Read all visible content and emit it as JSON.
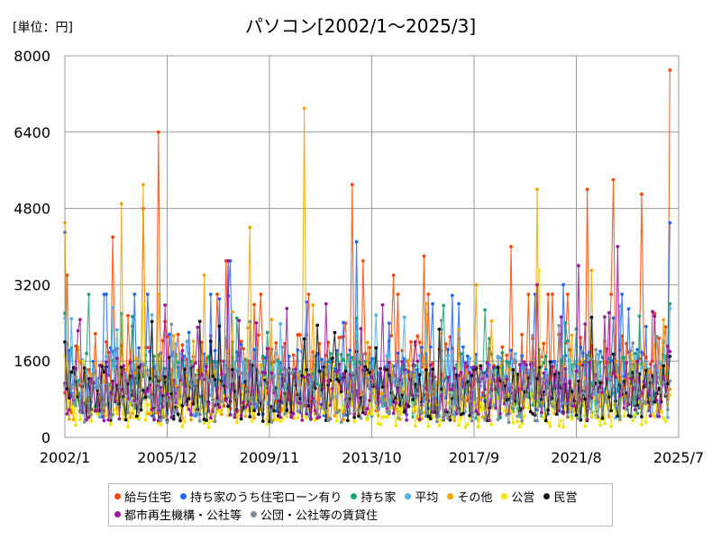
{
  "unit_label": "[単位：円]",
  "chart_data": {
    "type": "line",
    "title": "パソコン[2002/1～2025/3]",
    "xlabel": "",
    "ylabel": "",
    "ylim": [
      0,
      8000
    ],
    "yticks": [
      0,
      1600,
      3200,
      4800,
      6400,
      8000
    ],
    "xticks": [
      "2002/1",
      "2005/12",
      "2009/11",
      "2013/10",
      "2017/9",
      "2021/8",
      "2025/7"
    ],
    "x_start": "2002/1",
    "x_end": "2025/7",
    "grid": true,
    "legend_position": "bottom",
    "series": [
      {
        "name": "給与住宅",
        "color": "#ff4500",
        "peaks": [
          [
            "2002/2",
            3400
          ],
          [
            "2003/11",
            4200
          ],
          [
            "2005/1",
            4800
          ],
          [
            "2005/8",
            6400
          ],
          [
            "2008/3",
            3700
          ],
          [
            "2013/1",
            5300
          ],
          [
            "2013/6",
            3700
          ],
          [
            "2014/8",
            3400
          ],
          [
            "2015/10",
            3800
          ],
          [
            "2019/2",
            4000
          ],
          [
            "2022/1",
            5200
          ],
          [
            "2023/1",
            5400
          ],
          [
            "2024/2",
            5100
          ],
          [
            "2025/3",
            7700
          ]
        ],
        "typical": 1350
      },
      {
        "name": "持ち家のうち住宅ローン有り",
        "color": "#1e66ff",
        "peaks": [
          [
            "2002/1",
            4300
          ],
          [
            "2003/7",
            3000
          ],
          [
            "2005/3",
            3000
          ],
          [
            "2008/5",
            3700
          ],
          [
            "2013/3",
            4100
          ],
          [
            "2016/2",
            2800
          ],
          [
            "2021/2",
            3200
          ],
          [
            "2025/3",
            4500
          ]
        ],
        "typical": 1200
      },
      {
        "name": "持ち家",
        "color": "#1aa37a",
        "peaks": [
          [
            "2002/1",
            2600
          ],
          [
            "2008/6",
            2000
          ],
          [
            "2013/3",
            2500
          ],
          [
            "2021/3",
            2400
          ],
          [
            "2025/3",
            2800
          ]
        ],
        "typical": 1100
      },
      {
        "name": "平均",
        "color": "#4fb3e8",
        "peaks": [
          [
            "2002/1",
            2500
          ],
          [
            "2013/3",
            2200
          ],
          [
            "2025/3",
            2700
          ]
        ],
        "typical": 1100
      },
      {
        "name": "その他",
        "color": "#f4a300",
        "peaks": [
          [
            "2002/1",
            4500
          ],
          [
            "2004/3",
            4900
          ],
          [
            "2005/1",
            5300
          ],
          [
            "2005/8",
            3000
          ],
          [
            "2007/5",
            3400
          ],
          [
            "2009/2",
            4400
          ],
          [
            "2011/3",
            6900
          ],
          [
            "2015/11",
            2800
          ],
          [
            "2017/10",
            3200
          ],
          [
            "2020/2",
            5200
          ],
          [
            "2022/3",
            3500
          ]
        ],
        "typical": 1000
      },
      {
        "name": "公営",
        "color": "#f2e600",
        "peaks": [
          [
            "2002/1",
            1700
          ],
          [
            "2005/1",
            2800
          ],
          [
            "2011/3",
            1800
          ],
          [
            "2020/3",
            3500
          ]
        ],
        "typical": 600
      },
      {
        "name": "民営",
        "color": "#111111",
        "peaks": [
          [
            "2002/1",
            2000
          ],
          [
            "2013/3",
            1800
          ],
          [
            "2025/3",
            1700
          ]
        ],
        "typical": 950
      },
      {
        "name": "都市再生機構・公社等",
        "color": "#9a1a9a",
        "peaks": [
          [
            "2008/4",
            3700
          ],
          [
            "2010/7",
            2700
          ],
          [
            "2012/1",
            2800
          ],
          [
            "2020/2",
            3200
          ],
          [
            "2021/9",
            3600
          ],
          [
            "2023/3",
            4000
          ],
          [
            "2025/3",
            1800
          ]
        ],
        "typical": 1000
      },
      {
        "name": "公団・公社等の賃貸住",
        "color": "#7f8c99",
        "peaks": [
          [
            "2013/3",
            2000
          ]
        ],
        "typical": 900
      }
    ]
  }
}
